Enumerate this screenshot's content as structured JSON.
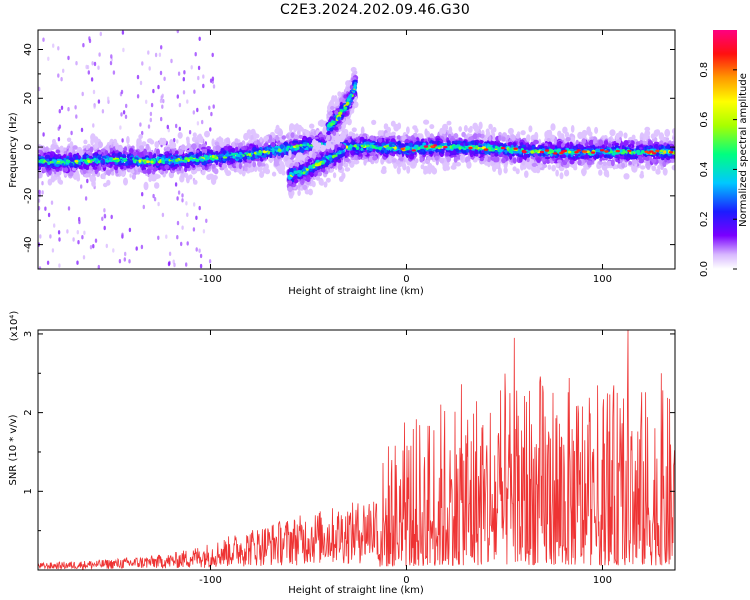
{
  "figure_title": "C2E3.2024.202.09.46.G30",
  "chart_data": [
    {
      "type": "heatmap",
      "title": "",
      "xlabel": "Height of straight line (km)",
      "ylabel": "Frequency (Hz)",
      "xlim": [
        -188,
        137
      ],
      "ylim": [
        -50,
        48
      ],
      "xticks": [
        -100,
        0,
        100
      ],
      "yticks": [
        -40,
        -20,
        0,
        20,
        40
      ],
      "colorbar": {
        "label": "Normalized spectral amplitude",
        "range": [
          0,
          0.96
        ],
        "ticks": [
          "0.0",
          "0.2",
          "0.4",
          "0.6",
          "0.8"
        ],
        "colormap": "rainbow"
      },
      "ridges": [
        {
          "x": [
            -188,
            -170,
            -150,
            -130,
            -110,
            -95,
            -80,
            -65,
            -55,
            -45,
            -38,
            -30,
            -22,
            -15,
            -8,
            0,
            10,
            30,
            50,
            70,
            90,
            110,
            125,
            137
          ],
          "y": [
            -6,
            -6,
            -5,
            -6,
            -5,
            -4,
            -3,
            -1,
            0,
            1,
            0,
            0,
            0,
            0,
            0,
            -1,
            0,
            0,
            -1,
            -2,
            -2,
            -2,
            -2,
            -2
          ]
        },
        {
          "x": [
            -60,
            -52,
            -45,
            -38,
            -32
          ],
          "y": [
            -12,
            -10,
            -7,
            -4,
            -2
          ]
        },
        {
          "x": [
            -40,
            -35,
            -30,
            -26
          ],
          "y": [
            8,
            12,
            18,
            25
          ]
        }
      ]
    },
    {
      "type": "line",
      "title": "",
      "xlabel": "Height of straight line (km)",
      "ylabel": "SNR (10 * v/v)",
      "yscale_label": "(x10⁴)",
      "color": "#ee3333",
      "xlim": [
        -188,
        137
      ],
      "ylim": [
        0,
        3.05
      ],
      "xticks": [
        -100,
        0,
        100
      ],
      "yticks": [
        1,
        2,
        3
      ],
      "envelope": {
        "x": [
          -188,
          -150,
          -120,
          -100,
          -80,
          -60,
          -40,
          -25,
          -15,
          -10,
          0,
          10,
          25,
          40,
          55,
          70,
          90,
          110,
          125,
          137
        ],
        "y": [
          0.05,
          0.08,
          0.12,
          0.2,
          0.3,
          0.38,
          0.45,
          0.5,
          0.6,
          0.85,
          0.95,
          1.05,
          1.2,
          1.25,
          1.3,
          1.3,
          1.25,
          1.2,
          1.2,
          1.15
        ]
      },
      "peaks": [
        {
          "x": 55,
          "y": 2.95
        },
        {
          "x": 113,
          "y": 3.05
        },
        {
          "x": 130,
          "y": 2.5
        }
      ]
    }
  ]
}
